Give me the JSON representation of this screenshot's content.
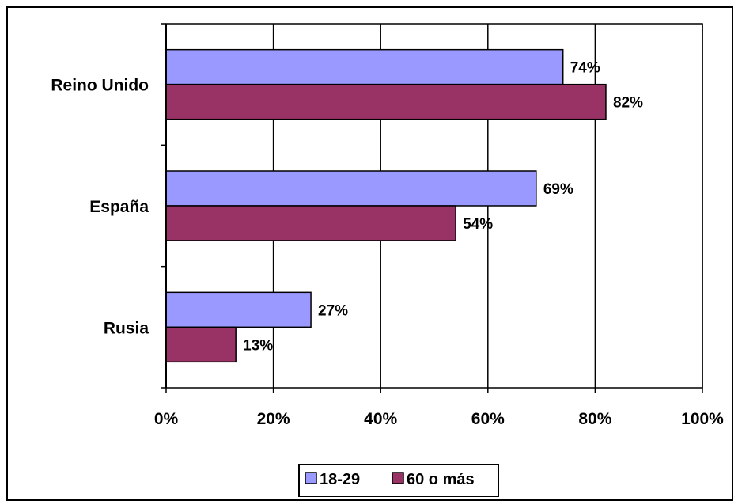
{
  "colors": {
    "series_18_29": "#9999ff",
    "series_60_mas": "#993366"
  },
  "chart_data": {
    "type": "bar",
    "orientation": "horizontal",
    "categories": [
      "Reino Unido",
      "España",
      "Rusia"
    ],
    "series": [
      {
        "name": "18-29",
        "values": [
          74,
          69,
          27
        ],
        "labels": [
          "74%",
          "69%",
          "27%"
        ]
      },
      {
        "name": "60 o más",
        "values": [
          82,
          54,
          13
        ],
        "labels": [
          "82%",
          "54%",
          "13%"
        ]
      }
    ],
    "xlim": [
      0,
      100
    ],
    "x_ticks": [
      "0%",
      "20%",
      "40%",
      "60%",
      "80%",
      "100%"
    ],
    "grid": true,
    "legend_position": "bottom"
  }
}
